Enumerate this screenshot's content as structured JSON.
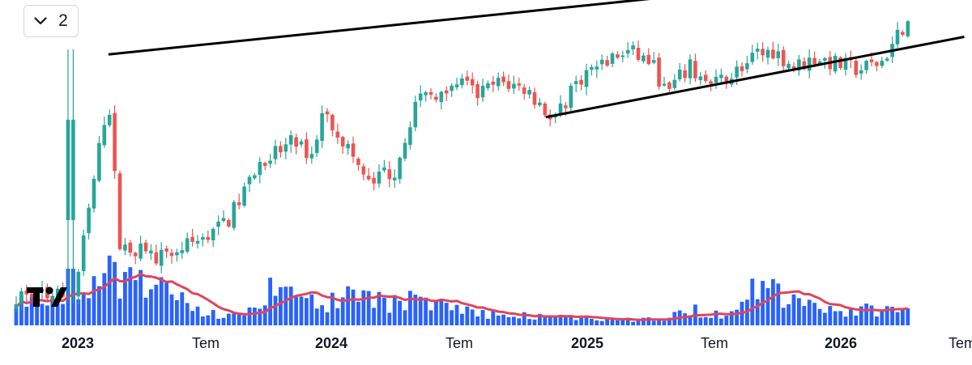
{
  "toolbar": {
    "collapse_count": "2",
    "collapse_icon": "chevron-down-icon"
  },
  "logo": {
    "name": "tradingview-logo",
    "text": "TV"
  },
  "colors": {
    "up": "#26a69a",
    "down": "#ef5350",
    "volume": "#2962ff",
    "volume_ma": "#e24459",
    "trendline": "#000000",
    "background": "#ffffff"
  },
  "chart_data": {
    "type": "candlestick",
    "interval": "weekly",
    "title": "",
    "x_axis": {
      "labels": [
        "2023",
        "Tem",
        "2024",
        "Tem",
        "2025",
        "Tem",
        "2026",
        "Tem"
      ],
      "bold": [
        true,
        false,
        true,
        false,
        true,
        false,
        true,
        false
      ]
    },
    "notes": "Price axis is not shown; values below are in an index scale (0 = lowest visible, 100 = highest visible). Volume in relative units.",
    "keyframes": [
      {
        "t": 0.0,
        "p": 10
      },
      {
        "t": 0.045,
        "p": 90
      },
      {
        "t": 0.06,
        "p": 30
      },
      {
        "t": 0.12,
        "p": 25
      },
      {
        "t": 0.2,
        "p": 38
      },
      {
        "t": 0.245,
        "p": 62
      },
      {
        "t": 0.29,
        "p": 71
      },
      {
        "t": 0.315,
        "p": 66
      },
      {
        "t": 0.33,
        "p": 84
      },
      {
        "t": 0.36,
        "p": 70
      },
      {
        "t": 0.39,
        "p": 54
      },
      {
        "t": 0.425,
        "p": 60
      },
      {
        "t": 0.45,
        "p": 85
      },
      {
        "t": 0.5,
        "p": 97
      },
      {
        "t": 0.535,
        "p": 90
      },
      {
        "t": 0.565,
        "p": 95
      },
      {
        "t": 0.6,
        "p": 92
      },
      {
        "t": 0.625,
        "p": 83
      },
      {
        "t": 0.64,
        "p": 81
      },
      {
        "t": 0.665,
        "p": 96
      },
      {
        "t": 0.71,
        "p": 104
      },
      {
        "t": 0.735,
        "p": 107
      },
      {
        "t": 0.765,
        "p": 103
      },
      {
        "t": 0.785,
        "p": 90
      },
      {
        "t": 0.815,
        "p": 101
      },
      {
        "t": 0.845,
        "p": 93
      },
      {
        "t": 0.88,
        "p": 100
      },
      {
        "t": 0.925,
        "p": 108
      },
      {
        "t": 0.955,
        "p": 101
      },
      {
        "t": 0.985,
        "p": 105
      },
      {
        "t": 1.0,
        "p": 103
      },
      {
        "t": 1.04,
        "p": 100
      },
      {
        "t": 1.07,
        "p": 103
      },
      {
        "t": 1.085,
        "p": 110
      },
      {
        "t": 1.1,
        "p": 118
      }
    ],
    "volume_profile": [
      {
        "t": 0.0,
        "v": 30
      },
      {
        "t": 0.05,
        "v": 65
      },
      {
        "t": 0.08,
        "v": 50
      },
      {
        "t": 0.12,
        "v": 40
      },
      {
        "t": 0.18,
        "v": 15
      },
      {
        "t": 0.22,
        "v": 12
      },
      {
        "t": 0.26,
        "v": 45
      },
      {
        "t": 0.3,
        "v": 28
      },
      {
        "t": 0.35,
        "v": 30
      },
      {
        "t": 0.38,
        "v": 40
      },
      {
        "t": 0.42,
        "v": 25
      },
      {
        "t": 0.45,
        "v": 35
      },
      {
        "t": 0.5,
        "v": 20
      },
      {
        "t": 0.55,
        "v": 14
      },
      {
        "t": 0.6,
        "v": 12
      },
      {
        "t": 0.66,
        "v": 8
      },
      {
        "t": 0.72,
        "v": 7
      },
      {
        "t": 0.78,
        "v": 8
      },
      {
        "t": 0.82,
        "v": 18
      },
      {
        "t": 0.86,
        "v": 15
      },
      {
        "t": 0.89,
        "v": 35
      },
      {
        "t": 0.91,
        "v": 48
      },
      {
        "t": 0.95,
        "v": 30
      },
      {
        "t": 0.98,
        "v": 30
      },
      {
        "t": 1.02,
        "v": 16
      },
      {
        "t": 1.06,
        "v": 20
      },
      {
        "t": 1.1,
        "v": 18
      }
    ],
    "trendlines": [
      {
        "name": "upper-resistance-line",
        "from": {
          "t": 0.045,
          "p": 106
        },
        "to": {
          "t": 1.18,
          "p": 141
        }
      },
      {
        "name": "lower-support-line",
        "from": {
          "t": 0.625,
          "p": 81
        },
        "to": {
          "t": 1.18,
          "p": 113
        }
      }
    ],
    "volume_ma_period": 10
  }
}
